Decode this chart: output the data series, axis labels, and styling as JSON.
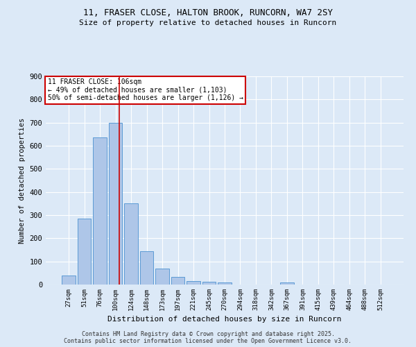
{
  "title": "11, FRASER CLOSE, HALTON BROOK, RUNCORN, WA7 2SY",
  "subtitle": "Size of property relative to detached houses in Runcorn",
  "xlabel": "Distribution of detached houses by size in Runcorn",
  "ylabel": "Number of detached properties",
  "categories": [
    "27sqm",
    "51sqm",
    "76sqm",
    "100sqm",
    "124sqm",
    "148sqm",
    "173sqm",
    "197sqm",
    "221sqm",
    "245sqm",
    "270sqm",
    "294sqm",
    "318sqm",
    "342sqm",
    "367sqm",
    "391sqm",
    "415sqm",
    "439sqm",
    "464sqm",
    "488sqm",
    "512sqm"
  ],
  "values": [
    40,
    285,
    635,
    700,
    350,
    145,
    68,
    32,
    15,
    12,
    10,
    0,
    0,
    0,
    8,
    0,
    0,
    0,
    0,
    0,
    0
  ],
  "bar_color": "#aec6e8",
  "bar_edge_color": "#5b9bd5",
  "background_color": "#dce9f7",
  "grid_color": "#ffffff",
  "annotation_text": "11 FRASER CLOSE: 106sqm\n← 49% of detached houses are smaller (1,103)\n50% of semi-detached houses are larger (1,126) →",
  "annotation_box_color": "#ffffff",
  "annotation_box_edge_color": "#cc0000",
  "ylim": [
    0,
    900
  ],
  "yticks": [
    0,
    100,
    200,
    300,
    400,
    500,
    600,
    700,
    800,
    900
  ],
  "footer_line1": "Contains HM Land Registry data © Crown copyright and database right 2025.",
  "footer_line2": "Contains public sector information licensed under the Open Government Licence v3.0."
}
